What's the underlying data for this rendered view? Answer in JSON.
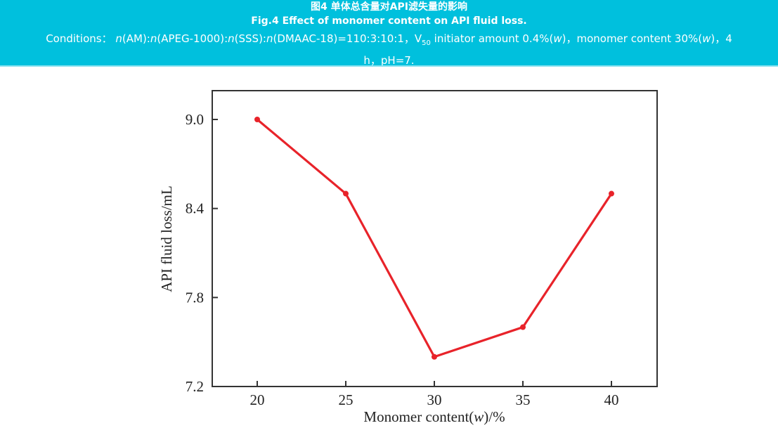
{
  "caption": {
    "title_cn": "图4 单体总含量对API滤失量的影响",
    "title_en": "Fig.4 Effect of monomer content on API fluid loss.",
    "conditions_label": "Conditions：",
    "conditions_text_line1": "n(AM):n(APEG-1000):n(SSS):n(DMAAC-18)=110:3:10:1，V50 initiator amount 0.4%(w)，monomer content 30%(w)，4",
    "conditions_text_line2": "h，pH=7."
  },
  "colors": {
    "banner": "#00c0dd",
    "line": "#e8232a",
    "axis": "#333333"
  },
  "chart_data": {
    "type": "line",
    "title": "",
    "xlabel": "Monomer content(w)/%",
    "ylabel": "API fluid loss/mL",
    "x": [
      20,
      25,
      30,
      35,
      40
    ],
    "series": [
      {
        "name": "API fluid loss",
        "values": [
          9.0,
          8.5,
          7.4,
          7.6,
          8.5
        ]
      }
    ],
    "xticks": [
      "20",
      "25",
      "30",
      "35",
      "40"
    ],
    "yticks": [
      "7.2",
      "7.8",
      "8.4",
      "9.0"
    ],
    "xlim": [
      17.5,
      42.6
    ],
    "ylim": [
      7.2,
      9.2
    ],
    "grid": false,
    "legend": "none",
    "markers": true
  }
}
